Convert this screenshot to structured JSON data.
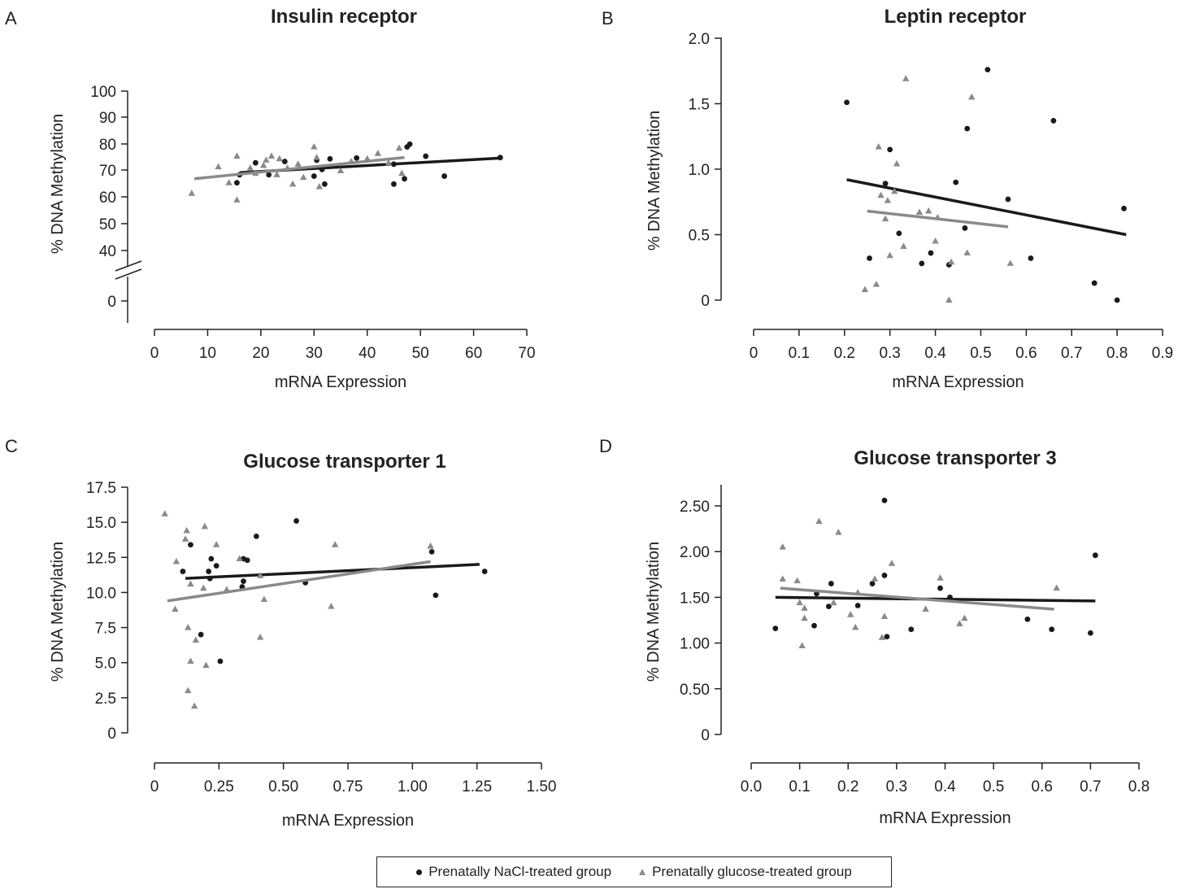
{
  "colors": {
    "nacl": "#1a1a1a",
    "glucose": "#8a8a8a",
    "axis": "#222222"
  },
  "legend": {
    "nacl_label": "Prenatally NaCl-treated group",
    "glucose_label": "Prenatally glucose-treated group",
    "placement": "bottom-center"
  },
  "chart_data": [
    {
      "panel": "A",
      "type": "scatter",
      "title": "Insulin receptor",
      "xlabel": "mRNA Expression",
      "ylabel": "% DNA Methylation",
      "xlim": [
        0,
        70
      ],
      "ylim": [
        40,
        100
      ],
      "y_axis_break": true,
      "x_ticks": [
        "0",
        "10",
        "20",
        "30",
        "40",
        "50",
        "60",
        "70"
      ],
      "y_ticks": [
        "0",
        "40",
        "50",
        "60",
        "70",
        "80",
        "90",
        "100"
      ],
      "series": [
        {
          "name": "Prenatally NaCl-treated group",
          "marker": "circle",
          "points": [
            [
              15.5,
              65.5
            ],
            [
              16,
              68.5
            ],
            [
              19,
              73
            ],
            [
              21.5,
              68.5
            ],
            [
              24.5,
              73.5
            ],
            [
              30,
              68
            ],
            [
              30.5,
              74
            ],
            [
              31.5,
              70.5
            ],
            [
              32,
              65
            ],
            [
              33,
              74.5
            ],
            [
              38,
              74.8
            ],
            [
              45,
              72.5
            ],
            [
              45,
              65
            ],
            [
              47,
              67
            ],
            [
              47.5,
              79
            ],
            [
              48,
              80
            ],
            [
              51,
              75.5
            ],
            [
              54.5,
              68
            ],
            [
              65,
              75
            ]
          ],
          "trend": [
            [
              16,
              69.3
            ],
            [
              65,
              74.8
            ]
          ]
        },
        {
          "name": "Prenatally glucose-treated group",
          "marker": "triangle",
          "points": [
            [
              7,
              61.5
            ],
            [
              12,
              71.5
            ],
            [
              14,
              65.5
            ],
            [
              15.5,
              75.5
            ],
            [
              15.5,
              59
            ],
            [
              18,
              71
            ],
            [
              19,
              69
            ],
            [
              20.5,
              72
            ],
            [
              21,
              74
            ],
            [
              22,
              75.5
            ],
            [
              23,
              68.5
            ],
            [
              23.5,
              74.5
            ],
            [
              25,
              71
            ],
            [
              26,
              65
            ],
            [
              27,
              72.5
            ],
            [
              28,
              67.5
            ],
            [
              30,
              79
            ],
            [
              30.5,
              75
            ],
            [
              31,
              64
            ],
            [
              35,
              70
            ],
            [
              37,
              73.5
            ],
            [
              40,
              74.5
            ],
            [
              42,
              76.5
            ],
            [
              44,
              73
            ],
            [
              46,
              78.5
            ],
            [
              46.5,
              69
            ]
          ],
          "trend": [
            [
              7.5,
              67
            ],
            [
              47,
              75
            ]
          ]
        }
      ]
    },
    {
      "panel": "B",
      "type": "scatter",
      "title": "Leptin receptor",
      "xlabel": "mRNA Expression",
      "ylabel": "% DNA Methylation",
      "xlim": [
        0,
        0.9
      ],
      "ylim": [
        0,
        2.0
      ],
      "x_ticks": [
        "0",
        "0.1",
        "0.2",
        "0.3",
        "0.4",
        "0.5",
        "0.6",
        "0.7",
        "0.8",
        "0.9"
      ],
      "y_ticks": [
        "0",
        "0.5",
        "1.0",
        "1.5",
        "2.0"
      ],
      "series": [
        {
          "name": "Prenatally NaCl-treated group",
          "marker": "circle",
          "points": [
            [
              0.205,
              1.51
            ],
            [
              0.255,
              0.32
            ],
            [
              0.29,
              0.89
            ],
            [
              0.3,
              1.15
            ],
            [
              0.32,
              0.51
            ],
            [
              0.37,
              0.28
            ],
            [
              0.39,
              0.36
            ],
            [
              0.43,
              0.27
            ],
            [
              0.445,
              0.9
            ],
            [
              0.465,
              0.55
            ],
            [
              0.47,
              1.31
            ],
            [
              0.515,
              1.76
            ],
            [
              0.56,
              0.77
            ],
            [
              0.61,
              0.32
            ],
            [
              0.66,
              1.37
            ],
            [
              0.75,
              0.13
            ],
            [
              0.8,
              0.0
            ],
            [
              0.815,
              0.7
            ]
          ],
          "trend": [
            [
              0.205,
              0.92
            ],
            [
              0.82,
              0.5
            ]
          ]
        },
        {
          "name": "Prenatally glucose-treated group",
          "marker": "triangle",
          "points": [
            [
              0.245,
              0.08
            ],
            [
              0.27,
              0.12
            ],
            [
              0.275,
              1.17
            ],
            [
              0.28,
              0.8
            ],
            [
              0.29,
              0.62
            ],
            [
              0.295,
              0.76
            ],
            [
              0.3,
              0.34
            ],
            [
              0.31,
              0.83
            ],
            [
              0.315,
              1.04
            ],
            [
              0.33,
              0.41
            ],
            [
              0.335,
              1.69
            ],
            [
              0.365,
              0.67
            ],
            [
              0.385,
              0.68
            ],
            [
              0.4,
              0.45
            ],
            [
              0.405,
              0.63
            ],
            [
              0.43,
              0.0
            ],
            [
              0.435,
              0.29
            ],
            [
              0.47,
              0.36
            ],
            [
              0.48,
              1.55
            ],
            [
              0.565,
              0.28
            ]
          ],
          "trend": [
            [
              0.25,
              0.68
            ],
            [
              0.56,
              0.56
            ]
          ]
        }
      ]
    },
    {
      "panel": "C",
      "type": "scatter",
      "title": "Glucose transporter 1",
      "xlabel": "mRNA Expression",
      "ylabel": "% DNA Methylation",
      "xlim": [
        0,
        1.5
      ],
      "ylim": [
        0,
        17.5
      ],
      "x_ticks": [
        "0",
        "0.25",
        "0.50",
        "0.75",
        "1.00",
        "1.25",
        "1.50"
      ],
      "y_ticks": [
        "0",
        "2.5",
        "5.0",
        "7.5",
        "10.0",
        "12.5",
        "15.0",
        "17.5"
      ],
      "series": [
        {
          "name": "Prenatally NaCl-treated group",
          "marker": "circle",
          "points": [
            [
              0.11,
              11.5
            ],
            [
              0.14,
              13.4
            ],
            [
              0.18,
              7.0
            ],
            [
              0.21,
              11.5
            ],
            [
              0.215,
              11.0
            ],
            [
              0.22,
              12.4
            ],
            [
              0.24,
              11.9
            ],
            [
              0.255,
              5.1
            ],
            [
              0.34,
              10.4
            ],
            [
              0.345,
              10.8
            ],
            [
              0.345,
              12.4
            ],
            [
              0.36,
              12.3
            ],
            [
              0.395,
              14.0
            ],
            [
              0.55,
              15.1
            ],
            [
              0.585,
              10.7
            ],
            [
              1.075,
              12.9
            ],
            [
              1.09,
              9.8
            ],
            [
              1.28,
              11.5
            ]
          ],
          "trend": [
            [
              0.12,
              11.0
            ],
            [
              1.26,
              12.0
            ]
          ]
        },
        {
          "name": "Prenatally glucose-treated group",
          "marker": "triangle",
          "points": [
            [
              0.04,
              15.6
            ],
            [
              0.08,
              8.8
            ],
            [
              0.085,
              12.2
            ],
            [
              0.12,
              13.8
            ],
            [
              0.125,
              14.4
            ],
            [
              0.13,
              7.5
            ],
            [
              0.13,
              3.0
            ],
            [
              0.14,
              5.1
            ],
            [
              0.14,
              10.6
            ],
            [
              0.155,
              1.9
            ],
            [
              0.16,
              6.6
            ],
            [
              0.19,
              10.3
            ],
            [
              0.195,
              14.7
            ],
            [
              0.2,
              4.8
            ],
            [
              0.24,
              13.4
            ],
            [
              0.28,
              10.2
            ],
            [
              0.33,
              12.4
            ],
            [
              0.41,
              11.2
            ],
            [
              0.41,
              6.8
            ],
            [
              0.425,
              9.5
            ],
            [
              0.685,
              9.0
            ],
            [
              0.7,
              13.4
            ],
            [
              1.07,
              13.3
            ]
          ],
          "trend": [
            [
              0.05,
              9.4
            ],
            [
              1.07,
              12.2
            ]
          ]
        }
      ]
    },
    {
      "panel": "D",
      "type": "scatter",
      "title": "Glucose transporter 3",
      "xlabel": "mRNA Expression",
      "ylabel": "% DNA Methylation",
      "xlim": [
        0.0,
        0.8
      ],
      "ylim": [
        0,
        2.75
      ],
      "x_ticks": [
        "0.0",
        "0.1",
        "0.2",
        "0.3",
        "0.4",
        "0.5",
        "0.6",
        "0.7",
        "0.8"
      ],
      "y_ticks": [
        "0",
        "0.50",
        "1.00",
        "1.50",
        "2.00",
        "2.50"
      ],
      "series": [
        {
          "name": "Prenatally NaCl-treated group",
          "marker": "circle",
          "points": [
            [
              0.05,
              1.16
            ],
            [
              0.13,
              1.19
            ],
            [
              0.135,
              1.54
            ],
            [
              0.16,
              1.4
            ],
            [
              0.165,
              1.65
            ],
            [
              0.22,
              1.41
            ],
            [
              0.25,
              1.65
            ],
            [
              0.275,
              1.74
            ],
            [
              0.275,
              2.56
            ],
            [
              0.28,
              1.07
            ],
            [
              0.33,
              1.15
            ],
            [
              0.39,
              1.6
            ],
            [
              0.41,
              1.5
            ],
            [
              0.57,
              1.26
            ],
            [
              0.62,
              1.15
            ],
            [
              0.7,
              1.11
            ],
            [
              0.71,
              1.96
            ]
          ],
          "trend": [
            [
              0.05,
              1.5
            ],
            [
              0.71,
              1.46
            ]
          ]
        },
        {
          "name": "Prenatally glucose-treated group",
          "marker": "triangle",
          "points": [
            [
              0.065,
              2.05
            ],
            [
              0.065,
              1.7
            ],
            [
              0.095,
              1.68
            ],
            [
              0.1,
              1.44
            ],
            [
              0.105,
              0.97
            ],
            [
              0.11,
              1.38
            ],
            [
              0.11,
              1.27
            ],
            [
              0.14,
              2.33
            ],
            [
              0.17,
              1.44
            ],
            [
              0.18,
              2.21
            ],
            [
              0.205,
              1.31
            ],
            [
              0.215,
              1.17
            ],
            [
              0.22,
              1.55
            ],
            [
              0.255,
              1.7
            ],
            [
              0.27,
              1.06
            ],
            [
              0.275,
              1.29
            ],
            [
              0.29,
              1.87
            ],
            [
              0.36,
              1.37
            ],
            [
              0.39,
              1.71
            ],
            [
              0.43,
              1.21
            ],
            [
              0.44,
              1.27
            ],
            [
              0.63,
              1.6
            ]
          ],
          "trend": [
            [
              0.06,
              1.6
            ],
            [
              0.625,
              1.37
            ]
          ]
        }
      ]
    }
  ]
}
